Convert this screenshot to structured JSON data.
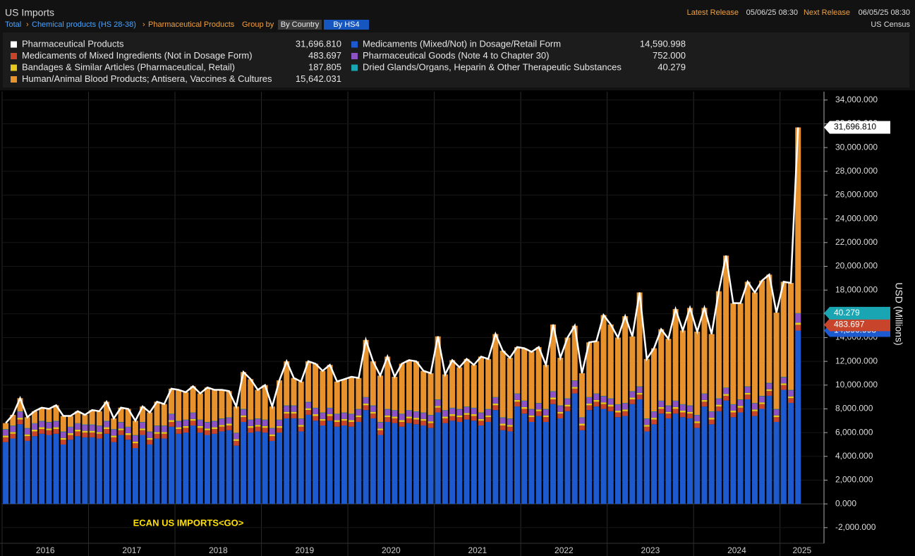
{
  "header": {
    "title": "US Imports",
    "crumb_total": "Total",
    "crumb_chem": "Chemical products (HS 28-38)",
    "crumb_pharma": "Pharmaceutical Products",
    "group_by": "Group by",
    "btn_country": "By Country",
    "btn_hs4": "By HS4",
    "latest_label": "Latest Release",
    "latest_value": "05/06/25 08:30",
    "next_label": "Next Release",
    "next_value": "06/05/25 08:30",
    "source": "US Census"
  },
  "chart_data": {
    "type": "bar",
    "stacked": true,
    "y_axis_label": "USD (Millions)",
    "annotation": "ECAN US IMPORTS<GO>",
    "ylim": [
      -3200,
      34700
    ],
    "yticks": [
      {
        "value": -2000,
        "label": "-2,000.000"
      },
      {
        "value": 0,
        "label": "0.000"
      },
      {
        "value": 2000,
        "label": "2,000.000"
      },
      {
        "value": 4000,
        "label": "4,000.000"
      },
      {
        "value": 6000,
        "label": "6,000.000"
      },
      {
        "value": 8000,
        "label": "8,000.000"
      },
      {
        "value": 10000,
        "label": "10,000.000"
      },
      {
        "value": 12000,
        "label": "12,000.000"
      },
      {
        "value": 14000,
        "label": "14,000.000"
      },
      {
        "value": 16000,
        "label": "16,000.000"
      },
      {
        "value": 18000,
        "label": "18,000.000"
      },
      {
        "value": 20000,
        "label": "20,000.000"
      },
      {
        "value": 22000,
        "label": "22,000.000"
      },
      {
        "value": 24000,
        "label": "24,000.000"
      },
      {
        "value": 26000,
        "label": "26,000.000"
      },
      {
        "value": 28000,
        "label": "28,000.000"
      },
      {
        "value": 30000,
        "label": "30,000.000"
      },
      {
        "value": 32000,
        "label": "32,000.000"
      },
      {
        "value": 34000,
        "label": "34,000.000"
      }
    ],
    "year_labels": [
      "2016",
      "2017",
      "2018",
      "2019",
      "2020",
      "2021",
      "2022",
      "2023",
      "2024",
      "2025"
    ],
    "total": {
      "name": "Pharmaceutical Products",
      "color": "#ffffff",
      "last_label": "31,696.810",
      "values": [
        6800,
        7500,
        8900,
        7300,
        7800,
        8100,
        8000,
        8300,
        7400,
        7400,
        7800,
        7500,
        7900,
        7800,
        8600,
        7200,
        8100,
        8000,
        7000,
        8200,
        7700,
        8600,
        8400,
        9700,
        9600,
        9400,
        9900,
        9300,
        9800,
        9600,
        9600,
        9500,
        8200,
        11100,
        10500,
        9600,
        10000,
        8200,
        10400,
        12000,
        10600,
        10300,
        12000,
        11800,
        11200,
        11700,
        10300,
        10500,
        10700,
        10600,
        13800,
        12000,
        10800,
        12400,
        10700,
        11800,
        12100,
        12000,
        11200,
        11000,
        14100,
        10900,
        12100,
        11500,
        12200,
        11700,
        12400,
        12200,
        14300,
        12900,
        12300,
        13200,
        13100,
        12800,
        13200,
        11700,
        15100,
        12300,
        14000,
        15000,
        11000,
        13600,
        13700,
        15900,
        15100,
        14000,
        15800,
        14100,
        17800,
        12200,
        13100,
        14700,
        13900,
        16400,
        14600,
        16500,
        14500,
        16500,
        14300,
        17900,
        20900,
        16900,
        16900,
        18700,
        17800,
        18800,
        19300,
        16100,
        18700,
        18600,
        31696.81
      ]
    },
    "series": [
      {
        "name": "Medicaments (Mixed/Not) in Dosage/Retail Form",
        "color": "#1d5ad0",
        "last_label": "14,590.998",
        "values": [
          5200,
          5500,
          6700,
          5300,
          5700,
          5900,
          5800,
          5900,
          5000,
          5400,
          5700,
          5600,
          5600,
          5500,
          5900,
          5200,
          5800,
          5400,
          4700,
          5800,
          5000,
          5500,
          5500,
          6500,
          5900,
          6000,
          6600,
          6000,
          5800,
          5900,
          6100,
          6200,
          4900,
          6900,
          6000,
          6100,
          6000,
          5300,
          6000,
          7200,
          7200,
          6100,
          7500,
          7000,
          6600,
          7000,
          6500,
          6600,
          6500,
          6900,
          7900,
          7200,
          5800,
          6900,
          6800,
          6500,
          6800,
          6700,
          6600,
          6400,
          7700,
          6800,
          7000,
          6900,
          7100,
          7000,
          6600,
          6900,
          7900,
          6200,
          6100,
          8200,
          7600,
          6900,
          7400,
          6900,
          8400,
          7200,
          7800,
          9300,
          6200,
          7900,
          8200,
          8000,
          7800,
          7300,
          7400,
          8400,
          8800,
          6100,
          6700,
          7600,
          7200,
          7600,
          7300,
          7200,
          6400,
          8200,
          6700,
          7800,
          8700,
          7300,
          7700,
          8800,
          7400,
          8000,
          9100,
          6900,
          9600,
          8500,
          14590.998
        ]
      },
      {
        "name": "Medicaments of Mixed Ingredients (Not in Dosage Form)",
        "color": "#c8452c",
        "last_label": "483.697",
        "values": [
          400,
          400,
          400,
          400,
          400,
          400,
          400,
          400,
          400,
          400,
          400,
          400,
          400,
          400,
          400,
          400,
          400,
          400,
          400,
          400,
          400,
          400,
          400,
          400,
          400,
          400,
          400,
          400,
          400,
          400,
          400,
          400,
          400,
          400,
          400,
          400,
          400,
          400,
          400,
          400,
          400,
          400,
          400,
          400,
          400,
          400,
          400,
          400,
          400,
          400,
          400,
          400,
          400,
          400,
          400,
          400,
          400,
          400,
          400,
          400,
          400,
          400,
          400,
          400,
          400,
          400,
          400,
          400,
          400,
          400,
          400,
          400,
          400,
          400,
          400,
          400,
          400,
          400,
          400,
          400,
          400,
          400,
          400,
          400,
          400,
          400,
          400,
          400,
          400,
          400,
          400,
          400,
          400,
          400,
          400,
          400,
          400,
          400,
          400,
          400,
          400,
          400,
          400,
          400,
          400,
          400,
          400,
          400,
          400,
          400,
          483.697
        ]
      },
      {
        "name": "Bandages & Similar Articles (Pharmaceutical, Retail)",
        "color": "#e6c81e",
        "last_label": "187.805",
        "values": [
          150,
          150,
          150,
          150,
          150,
          150,
          150,
          150,
          150,
          150,
          150,
          150,
          150,
          150,
          150,
          150,
          150,
          150,
          150,
          150,
          150,
          150,
          150,
          150,
          150,
          150,
          150,
          150,
          150,
          150,
          150,
          150,
          150,
          150,
          150,
          150,
          150,
          150,
          150,
          150,
          150,
          150,
          150,
          150,
          150,
          150,
          150,
          150,
          150,
          150,
          150,
          150,
          150,
          150,
          150,
          150,
          150,
          150,
          150,
          150,
          150,
          150,
          150,
          150,
          150,
          150,
          150,
          150,
          150,
          150,
          150,
          150,
          150,
          150,
          150,
          150,
          150,
          150,
          150,
          150,
          150,
          150,
          150,
          150,
          150,
          150,
          150,
          150,
          150,
          150,
          150,
          150,
          150,
          150,
          150,
          150,
          150,
          150,
          150,
          150,
          150,
          150,
          150,
          150,
          150,
          150,
          150,
          150,
          150,
          150,
          187.805
        ]
      },
      {
        "name": "Pharmaceutical Goods (Note 4 to Chapter 30)",
        "color": "#8d52c4",
        "last_label": "752.000",
        "values": [
          500,
          500,
          500,
          500,
          500,
          500,
          500,
          500,
          500,
          500,
          500,
          500,
          500,
          500,
          500,
          500,
          500,
          500,
          500,
          500,
          500,
          500,
          500,
          500,
          500,
          500,
          500,
          500,
          500,
          500,
          500,
          500,
          500,
          500,
          500,
          500,
          500,
          500,
          500,
          500,
          500,
          500,
          500,
          500,
          500,
          500,
          500,
          500,
          500,
          500,
          500,
          500,
          500,
          500,
          500,
          500,
          500,
          500,
          500,
          500,
          500,
          500,
          500,
          500,
          500,
          500,
          500,
          500,
          500,
          500,
          500,
          500,
          500,
          500,
          500,
          500,
          500,
          500,
          500,
          500,
          500,
          500,
          500,
          500,
          500,
          500,
          500,
          500,
          500,
          500,
          500,
          500,
          500,
          500,
          500,
          500,
          500,
          500,
          500,
          500,
          500,
          500,
          500,
          500,
          500,
          500,
          500,
          500,
          500,
          500,
          752
        ]
      },
      {
        "name": "Dried Glands/Organs, Heparin & Other Therapeutic Substances",
        "color": "#1aa5b3",
        "last_label": "40.279",
        "values": [
          40,
          40,
          40,
          40,
          40,
          40,
          40,
          40,
          40,
          40,
          40,
          40,
          40,
          40,
          40,
          40,
          40,
          40,
          40,
          40,
          40,
          40,
          40,
          40,
          40,
          40,
          40,
          40,
          40,
          40,
          40,
          40,
          40,
          40,
          40,
          40,
          40,
          40,
          40,
          40,
          40,
          40,
          40,
          40,
          40,
          40,
          40,
          40,
          40,
          40,
          40,
          40,
          40,
          40,
          40,
          40,
          40,
          40,
          40,
          40,
          40,
          40,
          40,
          40,
          40,
          40,
          40,
          40,
          40,
          40,
          40,
          40,
          40,
          40,
          40,
          40,
          40,
          40,
          40,
          40,
          40,
          40,
          40,
          40,
          40,
          40,
          40,
          40,
          40,
          40,
          40,
          40,
          40,
          40,
          40,
          40,
          40,
          40,
          40,
          40,
          40,
          40,
          40,
          40,
          40,
          40,
          40,
          40,
          40,
          40,
          40.279
        ]
      },
      {
        "name": "Human/Animal Blood Products; Antisera, Vaccines & Cultures",
        "color": "#e8922e",
        "last_label": "15,642.031",
        "values": [
          510,
          910,
          1110,
          910,
          1010,
          1110,
          1110,
          1310,
          1310,
          910,
          1010,
          810,
          1210,
          1210,
          1610,
          910,
          1210,
          1510,
          1210,
          1310,
          1610,
          2010,
          1810,
          2110,
          2610,
          2310,
          2210,
          2210,
          2910,
          2610,
          2410,
          2210,
          2210,
          3110,
          3410,
          2410,
          2910,
          1810,
          3310,
          3710,
          2310,
          3110,
          3410,
          3710,
          3510,
          3610,
          2710,
          2810,
          3110,
          2610,
          4810,
          3710,
          3910,
          4410,
          2810,
          4210,
          4210,
          4210,
          3510,
          3510,
          5310,
          3010,
          4010,
          3510,
          4010,
          3610,
          4710,
          4210,
          5310,
          5610,
          5110,
          3910,
          4410,
          4810,
          4710,
          3710,
          5610,
          4010,
          5110,
          4610,
          3710,
          4610,
          4410,
          6810,
          6210,
          5610,
          7310,
          4610,
          7910,
          5010,
          5310,
          6010,
          5610,
          7710,
          6210,
          8210,
          7010,
          7210,
          6510,
          9010,
          11110,
          8510,
          8110,
          8810,
          9310,
          9710,
          9110,
          8110,
          8010,
          9010,
          15642.031
        ]
      }
    ]
  }
}
